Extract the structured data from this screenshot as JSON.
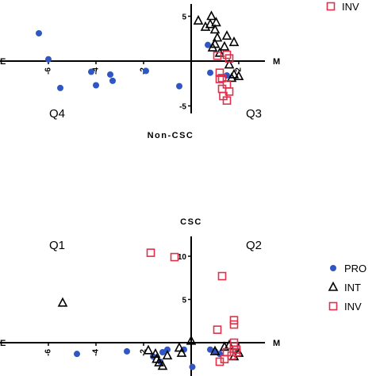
{
  "chart_data": [
    {
      "type": "scatter",
      "title": "Non-CSC",
      "xlabel_left": "E",
      "xlabel_right": "M",
      "xlim": [
        -7.5,
        3.5
      ],
      "ylim": [
        -6,
        6
      ],
      "x_ticks": [
        -6,
        -4,
        -2,
        2
      ],
      "y_ticks": [
        5,
        -5
      ],
      "quadrants": {
        "left": "Q4",
        "right": "Q3"
      },
      "legend": [
        {
          "name": "INV",
          "marker": "square",
          "color": "#e0304a"
        }
      ],
      "series": [
        {
          "name": "PRO",
          "marker": "circle",
          "color": "#2e56c4",
          "points": [
            [
              -6.4,
              3.1
            ],
            [
              -6.0,
              0.2
            ],
            [
              -5.5,
              -3.0
            ],
            [
              -4.2,
              -1.2
            ],
            [
              -4.0,
              -2.7
            ],
            [
              -3.4,
              -1.5
            ],
            [
              -3.3,
              -2.2
            ],
            [
              -1.9,
              -1.1
            ],
            [
              -0.5,
              -2.8
            ],
            [
              0.7,
              1.8
            ],
            [
              0.8,
              -1.3
            ],
            [
              1.5,
              -1.6
            ]
          ]
        },
        {
          "name": "INT",
          "marker": "triangle",
          "color": "#000000",
          "points": [
            [
              0.3,
              4.5
            ],
            [
              0.6,
              3.8
            ],
            [
              0.8,
              4.1
            ],
            [
              0.85,
              5.0
            ],
            [
              1.0,
              3.5
            ],
            [
              1.05,
              4.3
            ],
            [
              1.1,
              2.6
            ],
            [
              1.0,
              1.9
            ],
            [
              0.9,
              1.5
            ],
            [
              1.2,
              0.9
            ],
            [
              1.4,
              1.6
            ],
            [
              1.5,
              2.8
            ],
            [
              1.6,
              -0.4
            ],
            [
              1.7,
              -1.9
            ],
            [
              1.8,
              -1.5
            ],
            [
              1.8,
              2.1
            ],
            [
              2.0,
              -1.7
            ]
          ]
        },
        {
          "name": "INV",
          "marker": "square",
          "color": "#e0304a",
          "points": [
            [
              1.1,
              0.6
            ],
            [
              1.5,
              0.7
            ],
            [
              1.6,
              0.3
            ],
            [
              1.2,
              -1.3
            ],
            [
              1.2,
              -2.0
            ],
            [
              1.3,
              -3.1
            ],
            [
              1.35,
              -3.9
            ],
            [
              1.5,
              -2.6
            ],
            [
              1.5,
              -4.4
            ],
            [
              1.6,
              -3.4
            ],
            [
              1.3,
              -1.9
            ]
          ]
        }
      ]
    },
    {
      "type": "scatter",
      "title": "CSC",
      "xlabel_left": "E",
      "xlabel_right": "M",
      "xlim": [
        -7.5,
        3.5
      ],
      "ylim": [
        -3,
        13
      ],
      "x_ticks": [
        -6,
        -4,
        -2,
        2
      ],
      "y_ticks": [
        10,
        5
      ],
      "quadrants": {
        "left": "Q1",
        "right": "Q2"
      },
      "legend": [
        {
          "name": "PRO",
          "marker": "circle",
          "color": "#2e56c4"
        },
        {
          "name": "INT",
          "marker": "triangle",
          "color": "#000000"
        },
        {
          "name": "INV",
          "marker": "square",
          "color": "#e0304a"
        }
      ],
      "series": [
        {
          "name": "PRO",
          "marker": "circle",
          "color": "#2e56c4",
          "points": [
            [
              -4.8,
              -1.3
            ],
            [
              -2.7,
              -1.0
            ],
            [
              -1.6,
              -1.6
            ],
            [
              -1.2,
              -1.1
            ],
            [
              -1.0,
              -0.8
            ],
            [
              -1.3,
              -2.2
            ],
            [
              -0.3,
              -0.8
            ],
            [
              0.05,
              -2.8
            ],
            [
              0.8,
              -0.8
            ],
            [
              1.0,
              -1.0
            ],
            [
              1.2,
              -1.3
            ]
          ]
        },
        {
          "name": "INT",
          "marker": "triangle",
          "color": "#000000",
          "points": [
            [
              -5.4,
              4.6
            ],
            [
              -1.8,
              -0.9
            ],
            [
              -1.5,
              -1.3
            ],
            [
              -1.45,
              -1.9
            ],
            [
              -1.35,
              -2.3
            ],
            [
              -1.2,
              -2.7
            ],
            [
              -1.0,
              -1.5
            ],
            [
              -0.5,
              -0.6
            ],
            [
              -0.4,
              -1.2
            ],
            [
              0.0,
              0.2
            ],
            [
              1.0,
              -1.0
            ],
            [
              1.4,
              -0.5
            ],
            [
              1.6,
              -0.3
            ],
            [
              2.0,
              -1.2
            ],
            [
              1.8,
              -1.6
            ]
          ]
        },
        {
          "name": "INV",
          "marker": "square",
          "color": "#e0304a",
          "points": [
            [
              -1.7,
              10.4
            ],
            [
              -0.7,
              9.9
            ],
            [
              1.3,
              7.7
            ],
            [
              1.1,
              1.5
            ],
            [
              1.8,
              2.1
            ],
            [
              1.8,
              2.6
            ],
            [
              1.8,
              0.0
            ],
            [
              1.8,
              -0.4
            ],
            [
              1.9,
              -0.8
            ],
            [
              1.9,
              -1.1
            ],
            [
              1.7,
              -1.5
            ],
            [
              1.5,
              -1.1
            ],
            [
              1.4,
              -1.9
            ],
            [
              1.2,
              -2.2
            ]
          ]
        }
      ]
    }
  ]
}
